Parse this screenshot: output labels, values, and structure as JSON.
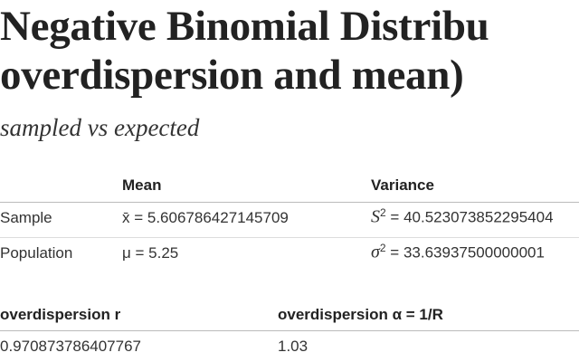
{
  "header": {
    "title_lines": [
      "Negative Binomial Distribu",
      "overdispersion and mean)"
    ],
    "subtitle": "sampled vs expected"
  },
  "table1": {
    "columns": [
      "Mean",
      "Variance"
    ],
    "rows": [
      {
        "label": "Sample",
        "mean": "x̄ = 5.606786427145709",
        "variance_symbol": "S",
        "variance_exponent": "2",
        "variance_value": "= 40.523073852295404"
      },
      {
        "label": "Population",
        "mean": "μ = 5.25",
        "variance_symbol": "σ",
        "variance_exponent": "2",
        "variance_value": "= 33.63937500000001"
      }
    ]
  },
  "table2": {
    "columns": [
      "overdispersion r",
      "overdispersion α = 1/R"
    ],
    "rows": [
      [
        "0.970873786407767",
        "1.03"
      ]
    ]
  }
}
